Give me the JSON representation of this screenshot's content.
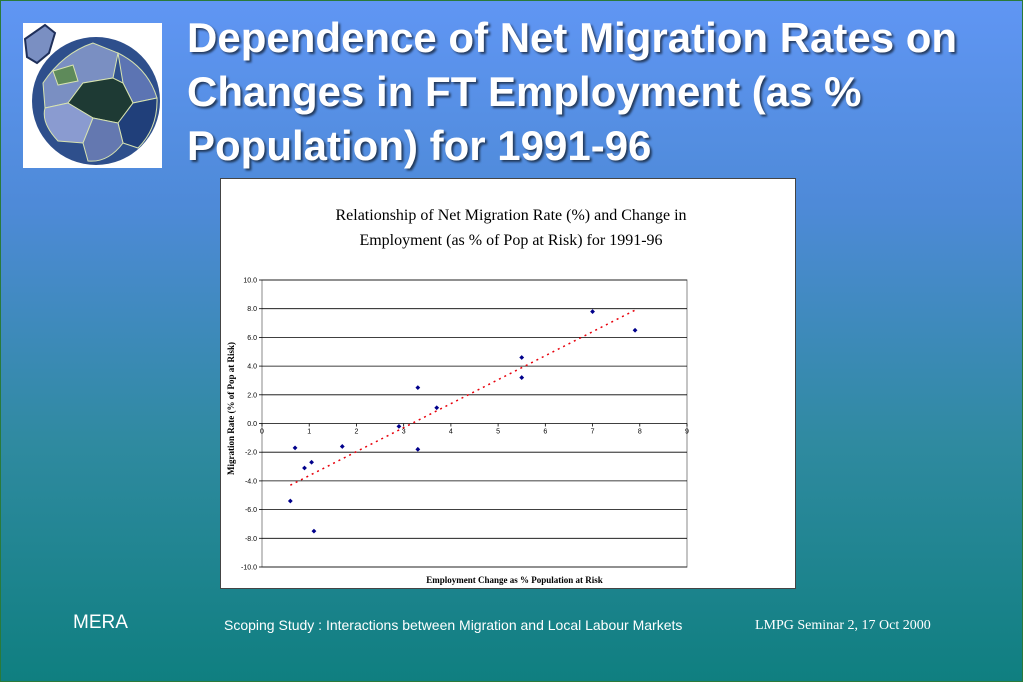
{
  "slide": {
    "title": "Dependence of Net Migration Rates on Changes in FT Employment (as % Population) for 1991-96",
    "logo_icon": "globe-jigsaw-icon"
  },
  "footer": {
    "left": "MERA",
    "center": "Scoping Study : Interactions between Migration and Local Labour Markets",
    "right": "LMPG Seminar 2, 17 Oct 2000"
  },
  "chart_data": {
    "type": "scatter",
    "title_line1": "Relationship of Net Migration Rate (%) and Change in",
    "title_line2": "Employment (as % of Pop at Risk) for 1991-96",
    "xlabel": "Employment Change as % Population at Risk",
    "ylabel": "Migration Rate (% of Pop at Risk)",
    "xlim": [
      0,
      9
    ],
    "ylim": [
      -10,
      10
    ],
    "x_ticks": [
      "0",
      "1",
      "2",
      "3",
      "4",
      "5",
      "6",
      "7",
      "8",
      "9"
    ],
    "y_ticks": [
      "10.0",
      "8.0",
      "6.0",
      "4.0",
      "2.0",
      "0.0",
      "-2.0",
      "-4.0",
      "-6.0",
      "-8.0",
      "-10.0"
    ],
    "grid": "horizontal",
    "point_color": "#00008b",
    "trendline_color": "#e8000b",
    "points": [
      {
        "x": 0.6,
        "y": -5.4
      },
      {
        "x": 0.7,
        "y": -1.7
      },
      {
        "x": 0.9,
        "y": -3.1
      },
      {
        "x": 1.05,
        "y": -2.7
      },
      {
        "x": 1.1,
        "y": -7.5
      },
      {
        "x": 1.7,
        "y": -1.6
      },
      {
        "x": 2.9,
        "y": -0.2
      },
      {
        "x": 3.3,
        "y": 2.5
      },
      {
        "x": 3.3,
        "y": -1.8
      },
      {
        "x": 3.7,
        "y": 1.1
      },
      {
        "x": 5.5,
        "y": 4.6
      },
      {
        "x": 5.5,
        "y": 3.2
      },
      {
        "x": 7.0,
        "y": 7.8
      },
      {
        "x": 7.9,
        "y": 6.5
      }
    ],
    "trendline": {
      "x": [
        0.6,
        7.9
      ],
      "y": [
        -4.3,
        7.9
      ]
    }
  }
}
